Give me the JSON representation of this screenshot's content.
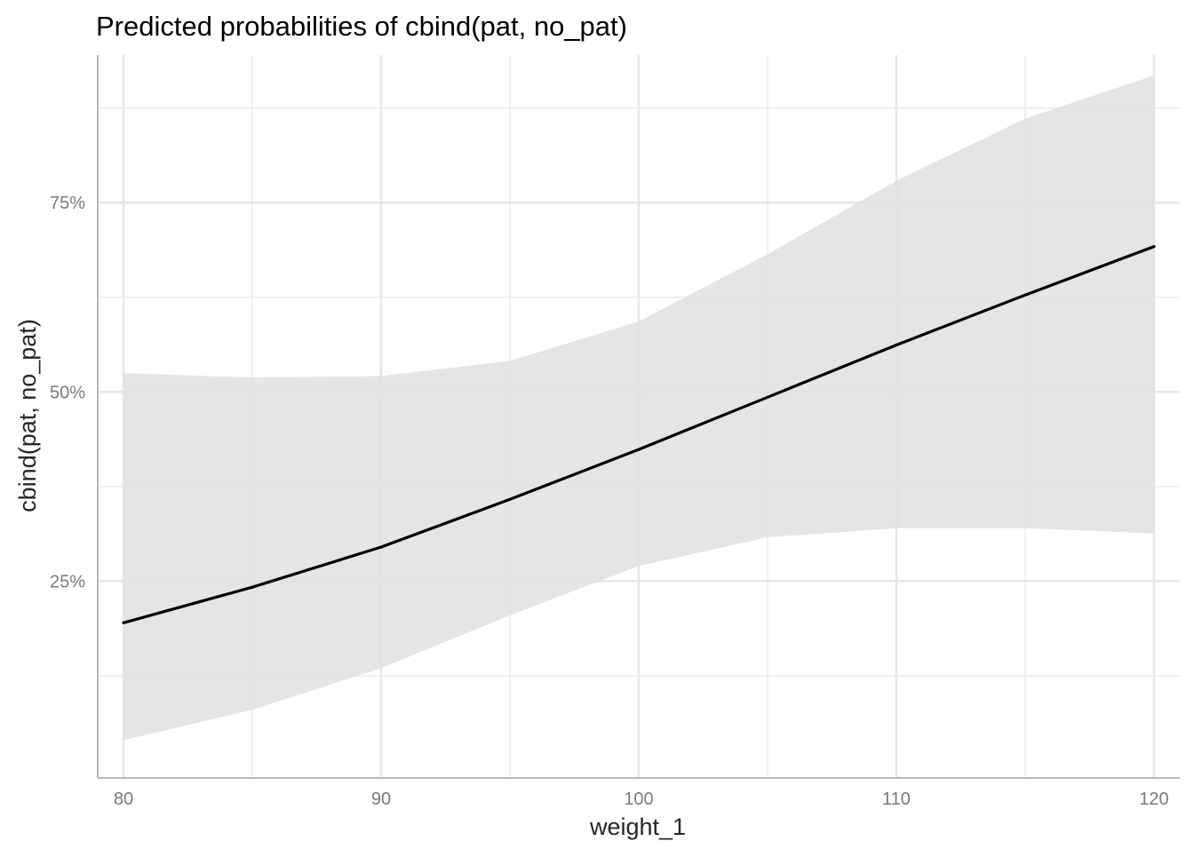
{
  "chart_data": {
    "type": "line",
    "title": "Predicted probabilities of cbind(pat, no_pat)",
    "xlabel": "weight_1",
    "ylabel": "cbind(pat, no_pat)",
    "x": [
      80,
      85,
      90,
      95,
      100,
      105,
      110,
      115,
      120
    ],
    "series": [
      {
        "values": [
          0.195,
          0.242,
          0.295,
          0.358,
          0.424,
          0.493,
          0.562,
          0.628,
          0.692
        ],
        "lower": [
          0.04,
          0.08,
          0.135,
          0.205,
          0.27,
          0.308,
          0.32,
          0.32,
          0.313
        ],
        "upper": [
          0.525,
          0.519,
          0.521,
          0.541,
          0.593,
          0.682,
          0.779,
          0.861,
          0.918
        ]
      }
    ],
    "xlim": [
      79,
      121
    ],
    "ylim": [
      -0.01,
      0.945
    ],
    "xticks": [
      80,
      90,
      100,
      110,
      120
    ],
    "xtick_labels": [
      "80",
      "90",
      "100",
      "110",
      "120"
    ],
    "yticks": [
      0.25,
      0.5,
      0.75
    ],
    "ytick_labels": [
      "25%",
      "50%",
      "75%"
    ],
    "y_minor": [
      0.125,
      0.375,
      0.625,
      0.875
    ],
    "x_minor": [
      85,
      95,
      105,
      115
    ],
    "grid": true,
    "line_color": "#000000",
    "band_color": "#e0e0e0",
    "grid_color": "#e6e6e6"
  }
}
